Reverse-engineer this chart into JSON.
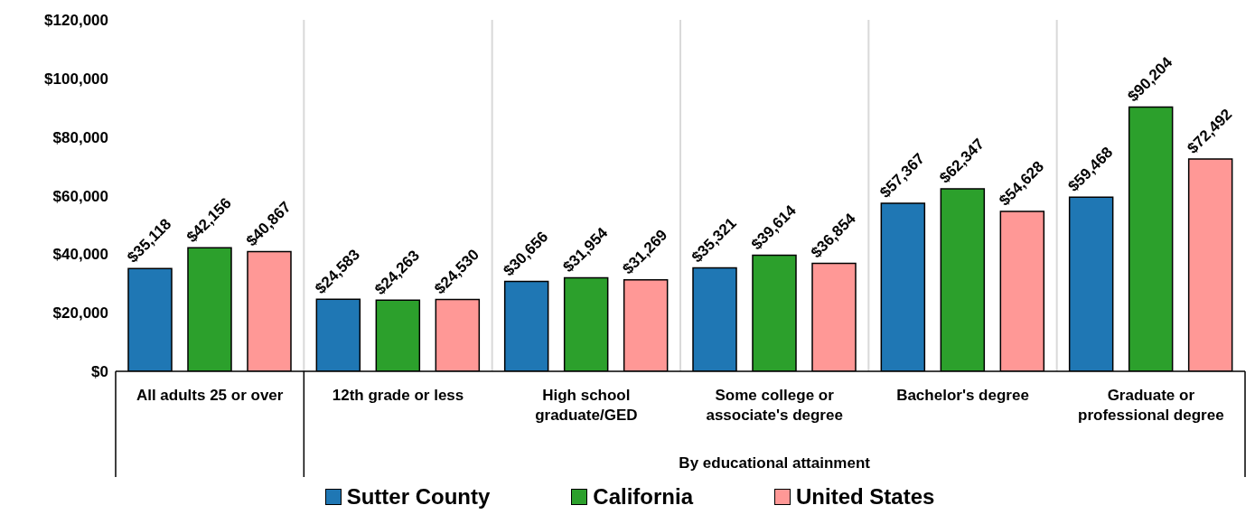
{
  "chart_data": {
    "type": "bar",
    "categories": [
      "All adults 25 or over",
      "12th grade or less",
      "High school graduate/GED",
      "Some college or associate's degree",
      "Bachelor's degree",
      "Graduate or professional degree"
    ],
    "series": [
      {
        "name": "Sutter County",
        "color": "#1f77b4",
        "values": [
          35118,
          24583,
          30656,
          35321,
          57367,
          59468
        ],
        "value_labels": [
          "$35,118",
          "$24,583",
          "$30,656",
          "$35,321",
          "$57,367",
          "$59,468"
        ]
      },
      {
        "name": "California",
        "color": "#2ca02c",
        "values": [
          42156,
          24263,
          31954,
          39614,
          62347,
          90204
        ],
        "value_labels": [
          "$42,156",
          "$24,263",
          "$31,954",
          "$39,614",
          "$62,347",
          "$90,204"
        ]
      },
      {
        "name": "United States",
        "color": "#ff9896",
        "values": [
          40867,
          24530,
          31269,
          36854,
          54628,
          72492
        ],
        "value_labels": [
          "$40,867",
          "$24,530",
          "$31,269",
          "$36,854",
          "$54,628",
          "$72,492"
        ]
      }
    ],
    "ylim": [
      0,
      120000
    ],
    "yticks": [
      {
        "value": 0,
        "label": "$0"
      },
      {
        "value": 20000,
        "label": "$20,000"
      },
      {
        "value": 40000,
        "label": "$40,000"
      },
      {
        "value": 60000,
        "label": "$60,000"
      },
      {
        "value": 80000,
        "label": "$80,000"
      },
      {
        "value": 100000,
        "label": "$100,000"
      },
      {
        "value": 120000,
        "label": "$120,000"
      }
    ],
    "grid": "x",
    "legend": "bottom",
    "annotations": [
      "By educational attainment"
    ]
  }
}
